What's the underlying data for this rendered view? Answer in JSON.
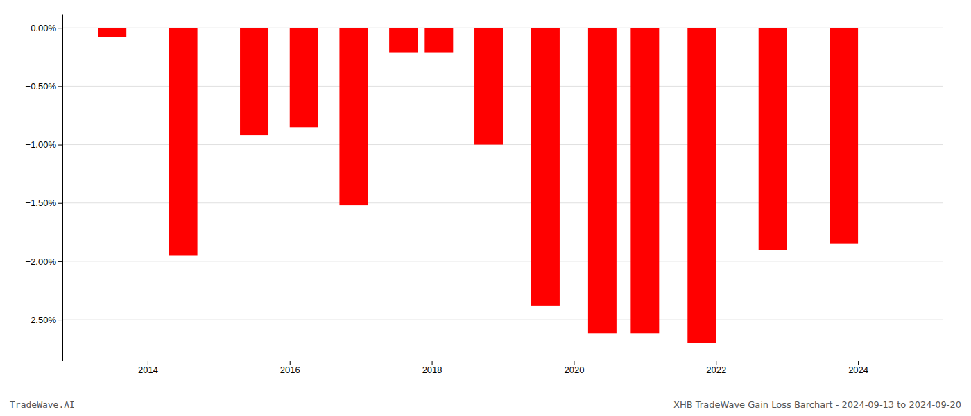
{
  "chart_data": {
    "type": "bar",
    "x": [
      2013.5,
      2014.5,
      2015.5,
      2016.2,
      2016.9,
      2017.6,
      2018.1,
      2018.8,
      2019.6,
      2020.4,
      2021.0,
      2021.8,
      2022.8,
      2023.8
    ],
    "values": [
      -0.08,
      -1.95,
      -0.92,
      -0.85,
      -1.52,
      -0.21,
      -0.21,
      -1.0,
      -2.38,
      -2.62,
      -2.62,
      -2.7,
      -1.9,
      -1.85
    ],
    "color": "#ff0000",
    "xlim": [
      2012.8,
      2025.2
    ],
    "xticks": [
      2014,
      2016,
      2018,
      2020,
      2022,
      2024
    ],
    "ylim": [
      -2.85,
      0.12
    ],
    "yticks": [
      {
        "value": 0.0,
        "label": "0.00%"
      },
      {
        "value": -0.5,
        "label": "−0.50%"
      },
      {
        "value": -1.0,
        "label": "−1.00%"
      },
      {
        "value": -1.5,
        "label": "−1.50%"
      },
      {
        "value": -2.0,
        "label": "−2.00%"
      },
      {
        "value": -2.5,
        "label": "−2.50%"
      }
    ],
    "grid": true,
    "annotations": [
      "TradeWave.AI",
      "XHB TradeWave Gain Loss Barchart - 2024-09-13 to 2024-09-20"
    ]
  }
}
